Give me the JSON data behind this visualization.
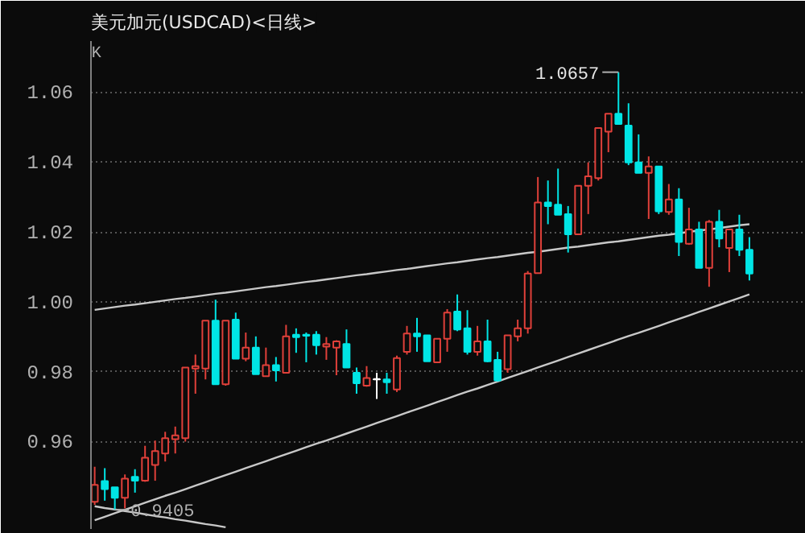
{
  "chart_data": {
    "type": "candlestick",
    "title": "美元加元(USDCAD)<日线>",
    "categories": [
      null,
      null,
      null,
      null,
      null,
      null,
      null,
      null,
      null,
      null,
      null,
      null,
      null,
      null,
      null,
      null,
      null,
      null,
      null,
      null,
      null,
      null,
      null,
      null,
      null,
      null,
      null,
      null,
      null,
      null,
      null,
      null,
      null,
      null,
      null,
      null,
      null,
      null,
      null,
      null,
      null,
      null,
      null,
      null,
      null,
      null,
      null,
      null,
      null,
      null,
      null,
      null,
      null,
      null,
      null,
      null,
      null,
      null,
      null,
      null,
      null,
      null,
      null,
      null,
      null,
      null
    ],
    "ohlc": [
      [
        0.9428,
        0.9528,
        0.9419,
        0.9476
      ],
      [
        0.9487,
        0.9524,
        0.9431,
        0.9464
      ],
      [
        0.9469,
        0.9469,
        0.9405,
        0.9439
      ],
      [
        0.9439,
        0.9506,
        0.9409,
        0.9494
      ],
      [
        0.9499,
        0.9521,
        0.9454,
        0.9488
      ],
      [
        0.9488,
        0.9588,
        0.9485,
        0.9554
      ],
      [
        0.9533,
        0.9603,
        0.9488,
        0.9573
      ],
      [
        0.9566,
        0.9628,
        0.9543,
        0.961
      ],
      [
        0.9607,
        0.9643,
        0.9566,
        0.9618
      ],
      [
        0.961,
        0.9812,
        0.96,
        0.9812
      ],
      [
        0.9809,
        0.9849,
        0.9737,
        0.9816
      ],
      [
        0.9809,
        0.9946,
        0.9778,
        0.9946
      ],
      [
        0.9946,
        1.0006,
        0.9764,
        0.9764
      ],
      [
        0.9764,
        0.9946,
        0.976,
        0.9946
      ],
      [
        0.9949,
        0.9969,
        0.9837,
        0.9837
      ],
      [
        0.9837,
        0.9912,
        0.983,
        0.9869
      ],
      [
        0.9869,
        0.9901,
        0.9793,
        0.9793
      ],
      [
        0.9787,
        0.9869,
        0.9787,
        0.9819
      ],
      [
        0.9819,
        0.9842,
        0.9772,
        0.9804
      ],
      [
        0.9797,
        0.9934,
        0.9797,
        0.9901
      ],
      [
        0.9906,
        0.9924,
        0.9854,
        0.9899
      ],
      [
        0.9906,
        0.9912,
        0.9827,
        0.9903
      ],
      [
        0.9906,
        0.9916,
        0.9849,
        0.9876
      ],
      [
        0.9872,
        0.9899,
        0.9834,
        0.9879
      ],
      [
        0.9869,
        0.989,
        0.979,
        0.9887
      ],
      [
        0.9879,
        0.9921,
        0.9812,
        0.9812
      ],
      [
        0.9797,
        0.9812,
        0.9737,
        0.9767
      ],
      [
        0.976,
        0.9816,
        0.9757,
        0.9782
      ],
      [
        0.9778,
        0.9797,
        0.9722,
        0.9778
      ],
      [
        0.9778,
        0.9797,
        0.9737,
        0.977
      ],
      [
        0.9749,
        0.9846,
        0.9742,
        0.9839
      ],
      [
        0.9857,
        0.9931,
        0.9849,
        0.9909
      ],
      [
        0.9909,
        0.9954,
        0.9857,
        0.9901
      ],
      [
        0.9904,
        0.9904,
        0.983,
        0.983
      ],
      [
        0.9827,
        0.9894,
        0.9827,
        0.9894
      ],
      [
        0.9894,
        0.9979,
        0.9857,
        0.9969
      ],
      [
        0.9972,
        1.0021,
        0.9916,
        0.9921
      ],
      [
        0.9924,
        0.9976,
        0.9849,
        0.9857
      ],
      [
        0.9857,
        0.9931,
        0.9846,
        0.9887
      ],
      [
        0.9887,
        0.9949,
        0.9827,
        0.983
      ],
      [
        0.9834,
        0.9857,
        0.9772,
        0.9775
      ],
      [
        0.9807,
        0.9904,
        0.9797,
        0.9904
      ],
      [
        0.9901,
        0.9949,
        0.9887,
        0.9924
      ],
      [
        0.9924,
        1.0088,
        0.9909,
        1.0081
      ],
      [
        1.0082,
        1.0357,
        1.0082,
        1.0284
      ],
      [
        1.0284,
        1.0347,
        1.0222,
        1.0274
      ],
      [
        1.0278,
        1.0381,
        1.0249,
        1.0249
      ],
      [
        1.0251,
        1.0274,
        1.0141,
        1.0193
      ],
      [
        1.0193,
        1.0332,
        1.0193,
        1.0332
      ],
      [
        1.0332,
        1.0399,
        1.0251,
        1.0359
      ],
      [
        1.0354,
        1.0497,
        1.0347,
        1.0497
      ],
      [
        1.0487,
        1.0538,
        1.0428,
        1.0538
      ],
      [
        1.0538,
        1.0657,
        1.0509,
        1.0509
      ],
      [
        1.0504,
        1.0568,
        1.0391,
        1.0399
      ],
      [
        1.0399,
        1.0479,
        1.0369,
        1.0369
      ],
      [
        1.0369,
        1.0416,
        1.0237,
        1.0387
      ],
      [
        1.0387,
        1.0387,
        1.0251,
        1.0259
      ],
      [
        1.0257,
        1.0337,
        1.0249,
        1.0293
      ],
      [
        1.0293,
        1.0325,
        1.0131,
        1.0171
      ],
      [
        1.0166,
        1.0269,
        1.0163,
        1.0207
      ],
      [
        1.0207,
        1.0229,
        1.0097,
        1.0097
      ],
      [
        1.0097,
        1.0234,
        1.0043,
        1.0229
      ],
      [
        1.0229,
        1.0263,
        1.0156,
        1.0181
      ],
      [
        1.0154,
        1.0207,
        1.0085,
        1.0207
      ],
      [
        1.0207,
        1.0249,
        1.0131,
        1.0149
      ],
      [
        1.0149,
        1.0185,
        1.0061,
        1.0081
      ]
    ],
    "colors": [
      "#e0403a",
      "#00e5e5",
      "#00e5e5",
      "#e0403a",
      "#00e5e5",
      "#e0403a",
      "#e0403a",
      "#e0403a",
      "#e0403a",
      "#e0403a",
      "#e0403a",
      "#e0403a",
      "#00e5e5",
      "#e0403a",
      "#00e5e5",
      "#e0403a",
      "#00e5e5",
      "#e0403a",
      "#00e5e5",
      "#e0403a",
      "#00e5e5",
      "#00e5e5",
      "#00e5e5",
      "#e0403a",
      "#e0403a",
      "#00e5e5",
      "#00e5e5",
      "#e0403a",
      "#ffffff",
      "#00e5e5",
      "#e0403a",
      "#e0403a",
      "#00e5e5",
      "#00e5e5",
      "#e0403a",
      "#e0403a",
      "#00e5e5",
      "#00e5e5",
      "#e0403a",
      "#00e5e5",
      "#00e5e5",
      "#e0403a",
      "#e0403a",
      "#e0403a",
      "#e0403a",
      "#00e5e5",
      "#00e5e5",
      "#00e5e5",
      "#e0403a",
      "#e0403a",
      "#e0403a",
      "#e0403a",
      "#00e5e5",
      "#00e5e5",
      "#00e5e5",
      "#e0403a",
      "#00e5e5",
      "#e0403a",
      "#00e5e5",
      "#e0403a",
      "#00e5e5",
      "#e0403a",
      "#00e5e5",
      "#e0403a",
      "#00e5e5",
      "#00e5e5"
    ],
    "series": [
      {
        "type": "line",
        "color": "#c8c8c8",
        "values": [
          0.9977,
          0.9981,
          0.9985,
          0.9989,
          0.9992,
          0.9996,
          1.0,
          1.0004,
          1.0008,
          1.0011,
          1.0015,
          1.0019,
          1.0023,
          1.0026,
          1.003,
          1.0034,
          1.0038,
          1.0042,
          1.0045,
          1.0049,
          1.0053,
          1.0057,
          1.006,
          1.0064,
          1.0068,
          1.0072,
          1.0076,
          1.0079,
          1.0083,
          1.0087,
          1.0091,
          1.0094,
          1.0098,
          1.0102,
          1.0106,
          1.011,
          1.0113,
          1.0117,
          1.0121,
          1.0125,
          1.0128,
          1.0132,
          1.0136,
          1.014,
          1.0143,
          1.0147,
          1.0151,
          1.0155,
          1.0158,
          1.0162,
          1.0166,
          1.017,
          1.0173,
          1.0177,
          1.0181,
          1.0185,
          1.0189,
          1.0192,
          1.0196,
          1.02,
          1.0204,
          1.0207,
          1.0211,
          1.0215,
          1.0219,
          1.0222
        ]
      },
      {
        "type": "line",
        "color": "#c8c8c8",
        "values": [
          0.9375,
          0.9385,
          0.9395,
          0.9405,
          0.9415,
          0.9425,
          0.9435,
          0.9445,
          0.9454,
          0.9464,
          0.9474,
          0.9484,
          0.9494,
          0.9504,
          0.9514,
          0.9524,
          0.9534,
          0.9544,
          0.9554,
          0.9564,
          0.9574,
          0.9584,
          0.9594,
          0.9603,
          0.9613,
          0.9623,
          0.9633,
          0.9643,
          0.9653,
          0.9663,
          0.9673,
          0.9683,
          0.9693,
          0.9703,
          0.9713,
          0.9723,
          0.9733,
          0.9743,
          0.9752,
          0.9762,
          0.9772,
          0.9782,
          0.9792,
          0.9802,
          0.9812,
          0.9822,
          0.9832,
          0.9842,
          0.9852,
          0.9862,
          0.9872,
          0.9882,
          0.9892,
          0.9902,
          0.9911,
          0.9921,
          0.9931,
          0.9941,
          0.9951,
          0.9961,
          0.9971,
          0.9981,
          0.9991,
          1.0001,
          1.0011,
          1.0021
        ]
      },
      {
        "type": "line",
        "color": "#c8c8c8",
        "values": [
          0.9415,
          0.941,
          0.9406,
          0.9401,
          0.9397,
          0.9392,
          0.9387,
          0.9383,
          0.9378,
          0.9374,
          0.9369,
          0.9364,
          0.936,
          0.9355,
          null,
          null,
          null,
          null,
          null,
          null,
          null,
          null,
          null,
          null,
          null,
          null,
          null,
          null,
          null,
          null,
          null,
          null,
          null,
          null,
          null,
          null,
          null,
          null,
          null,
          null,
          null,
          null,
          null,
          null,
          null,
          null,
          null,
          null,
          null,
          null,
          null,
          null,
          null,
          null,
          null,
          null,
          null,
          null,
          null,
          null,
          null,
          null,
          null,
          null,
          null,
          null
        ]
      }
    ],
    "ylim": [
      0.935,
      1.0746
    ],
    "yticks": [
      {
        "value": 0.96,
        "label": "0.96"
      },
      {
        "value": 0.98,
        "label": "0.98"
      },
      {
        "value": 1.0,
        "label": "1.00"
      },
      {
        "value": 1.02,
        "label": "1.02"
      },
      {
        "value": 1.04,
        "label": "1.04"
      },
      {
        "value": 1.06,
        "label": "1.06"
      }
    ],
    "grid": "y",
    "tick_labels": "y",
    "annotations": [
      "K",
      "1.0657",
      "0.9405"
    ]
  }
}
